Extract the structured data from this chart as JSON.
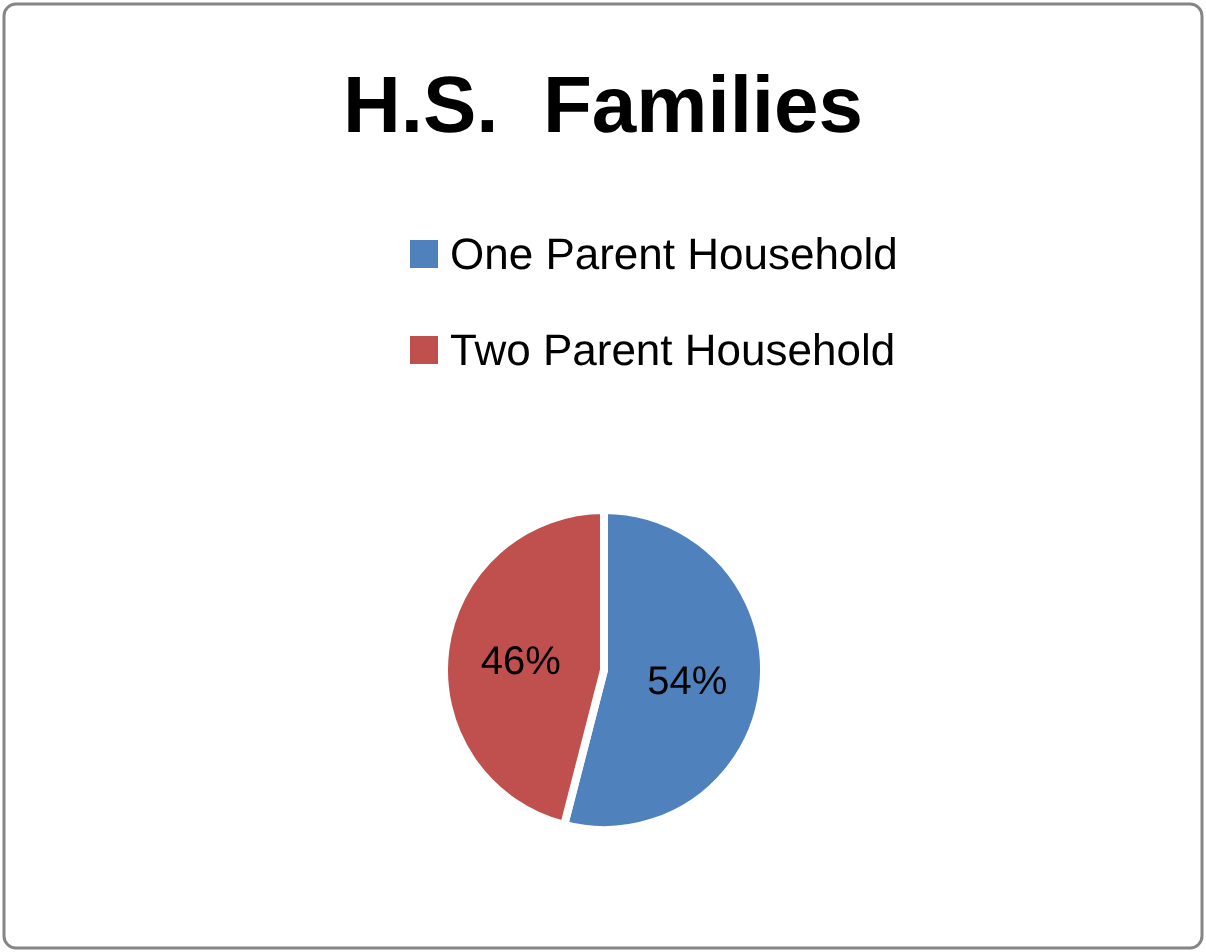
{
  "chart_data": {
    "type": "pie",
    "title": "H.S.  Families",
    "categories": [
      "One Parent Household",
      "Two Parent Household"
    ],
    "values": [
      54,
      46
    ],
    "colors": [
      "#4f81bd",
      "#c0504d"
    ],
    "value_labels": [
      "54%",
      "46%"
    ],
    "legend": "top"
  }
}
